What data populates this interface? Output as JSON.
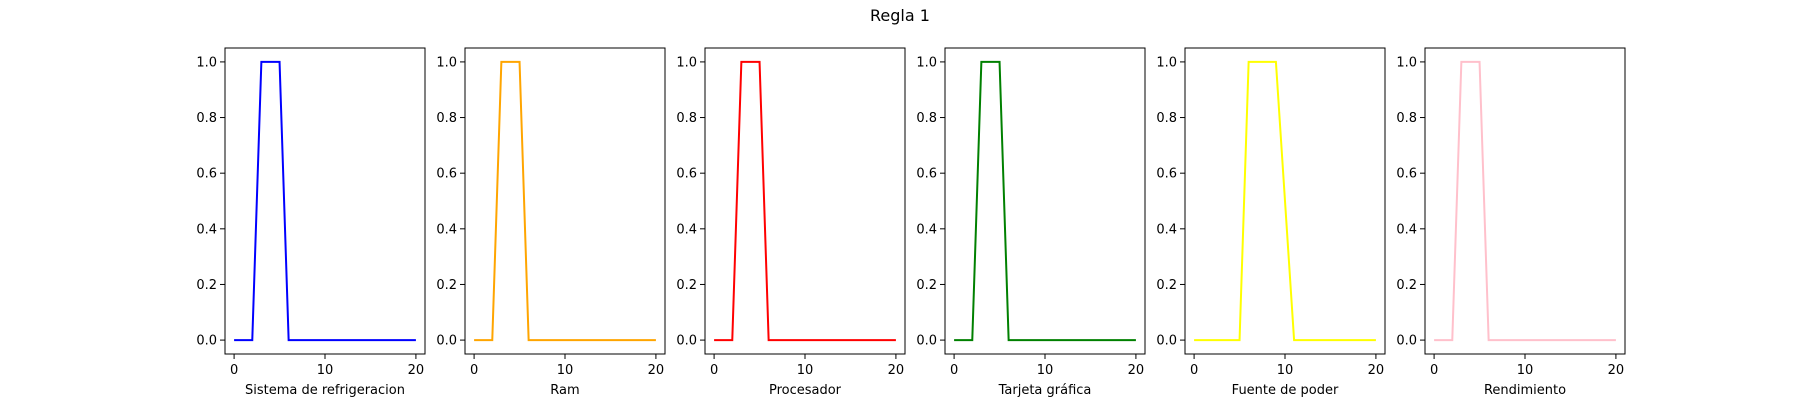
{
  "figure": {
    "title": "Regla 1"
  },
  "chart_data": [
    {
      "type": "line",
      "title": "",
      "xlabel": "Sistema de refrigeracion",
      "ylabel": "",
      "color": "#0000ff",
      "x": [
        0,
        2,
        3,
        5,
        6,
        20
      ],
      "y": [
        0,
        0,
        1,
        1,
        0,
        0
      ],
      "xlim": [
        -1,
        21
      ],
      "ylim": [
        -0.05,
        1.05
      ],
      "xticks": [
        0,
        10,
        20
      ],
      "yticks": [
        0.0,
        0.2,
        0.4,
        0.6,
        0.8,
        1.0
      ],
      "grid": false
    },
    {
      "type": "line",
      "title": "",
      "xlabel": "Ram",
      "ylabel": "",
      "color": "#ffa500",
      "x": [
        0,
        2,
        3,
        5,
        6,
        20
      ],
      "y": [
        0,
        0,
        1,
        1,
        0,
        0
      ],
      "xlim": [
        -1,
        21
      ],
      "ylim": [
        -0.05,
        1.05
      ],
      "xticks": [
        0,
        10,
        20
      ],
      "yticks": [
        0.0,
        0.2,
        0.4,
        0.6,
        0.8,
        1.0
      ],
      "grid": false
    },
    {
      "type": "line",
      "title": "",
      "xlabel": "Procesador",
      "ylabel": "",
      "color": "#ff0000",
      "x": [
        0,
        2,
        3,
        5,
        6,
        20
      ],
      "y": [
        0,
        0,
        1,
        1,
        0,
        0
      ],
      "xlim": [
        -1,
        21
      ],
      "ylim": [
        -0.05,
        1.05
      ],
      "xticks": [
        0,
        10,
        20
      ],
      "yticks": [
        0.0,
        0.2,
        0.4,
        0.6,
        0.8,
        1.0
      ],
      "grid": false
    },
    {
      "type": "line",
      "title": "",
      "xlabel": "Tarjeta gráfica",
      "ylabel": "",
      "color": "#008000",
      "x": [
        0,
        2,
        3,
        5,
        6,
        20
      ],
      "y": [
        0,
        0,
        1,
        1,
        0,
        0
      ],
      "xlim": [
        -1,
        21
      ],
      "ylim": [
        -0.05,
        1.05
      ],
      "xticks": [
        0,
        10,
        20
      ],
      "yticks": [
        0.0,
        0.2,
        0.4,
        0.6,
        0.8,
        1.0
      ],
      "grid": false
    },
    {
      "type": "line",
      "title": "",
      "xlabel": "Fuente de poder",
      "ylabel": "",
      "color": "#ffff00",
      "x": [
        0,
        5,
        6,
        9,
        11,
        20
      ],
      "y": [
        0,
        0,
        1,
        1,
        0,
        0
      ],
      "xlim": [
        -1,
        21
      ],
      "ylim": [
        -0.05,
        1.05
      ],
      "xticks": [
        0,
        10,
        20
      ],
      "yticks": [
        0.0,
        0.2,
        0.4,
        0.6,
        0.8,
        1.0
      ],
      "grid": false
    },
    {
      "type": "line",
      "title": "",
      "xlabel": "Rendimiento",
      "ylabel": "",
      "color": "#ffc0cb",
      "x": [
        0,
        2,
        3,
        5,
        6,
        20
      ],
      "y": [
        0,
        0,
        1,
        1,
        0,
        0
      ],
      "xlim": [
        -1,
        21
      ],
      "ylim": [
        -0.05,
        1.05
      ],
      "xticks": [
        0,
        10,
        20
      ],
      "yticks": [
        0.0,
        0.2,
        0.4,
        0.6,
        0.8,
        1.0
      ],
      "grid": false
    }
  ]
}
